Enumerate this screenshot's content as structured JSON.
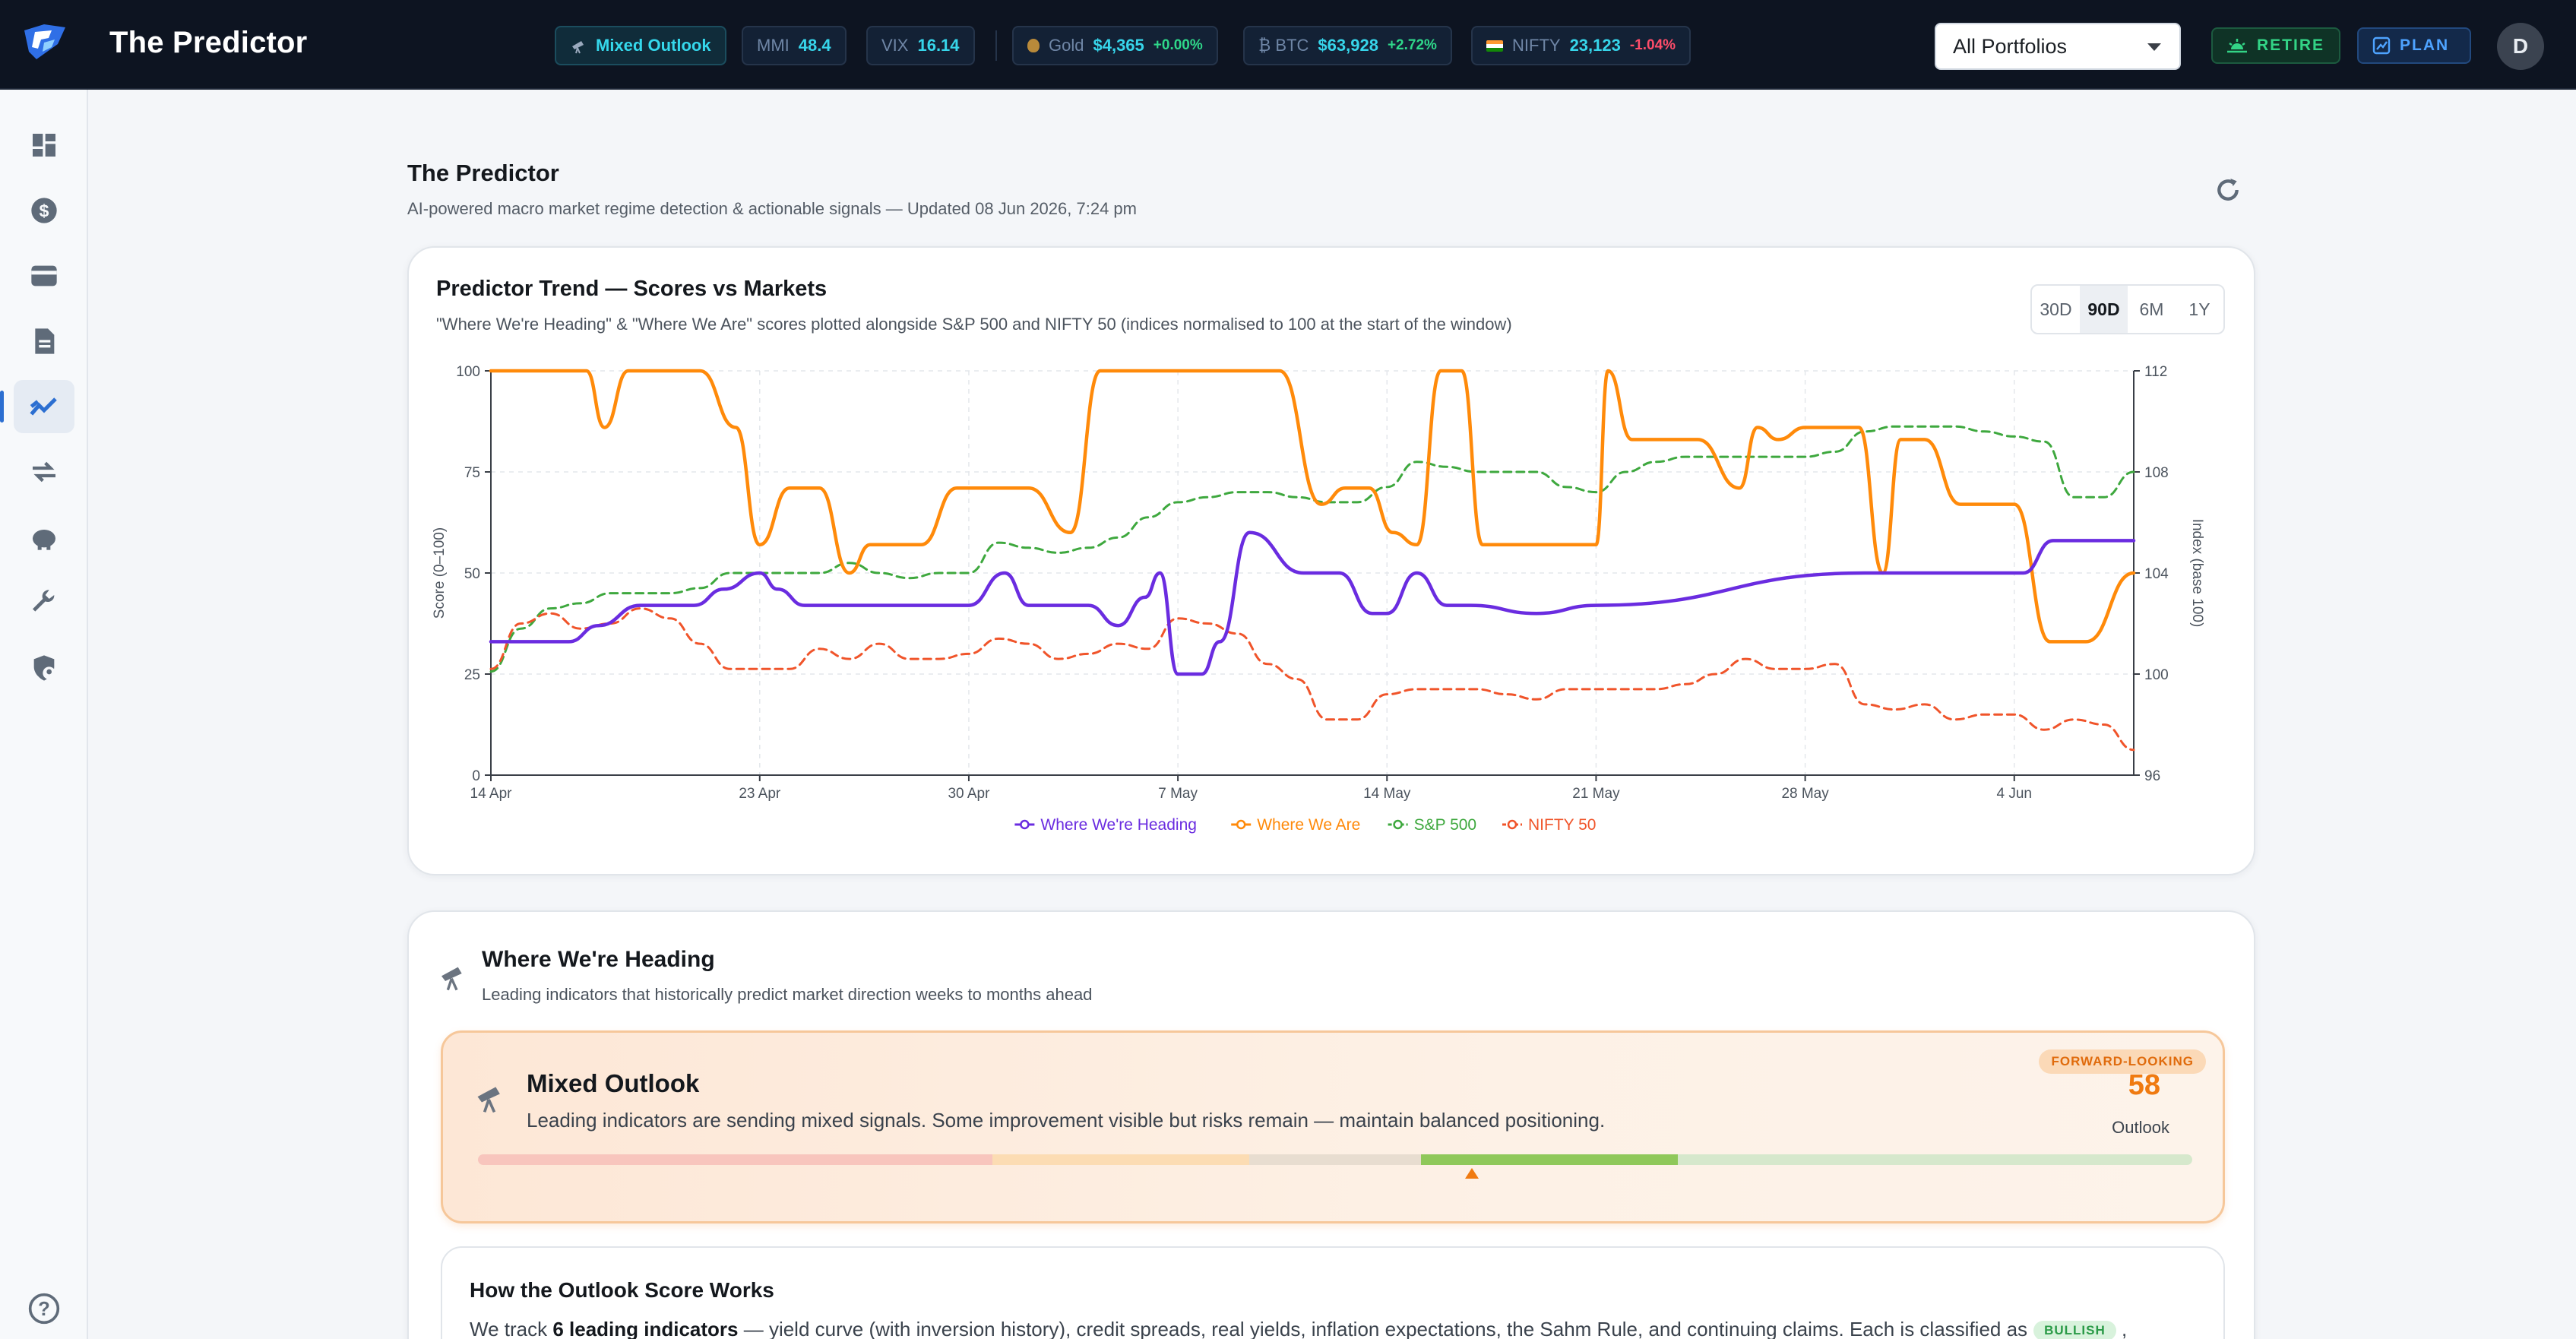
{
  "app": {
    "title": "The Predictor",
    "logo": "predictor-logo"
  },
  "topbar": {
    "outlook_chip": {
      "icon": "telescope-icon",
      "label": "Mixed Outlook"
    },
    "mmi": {
      "label": "MMI",
      "value": "48.4"
    },
    "vix": {
      "label": "VIX",
      "value": "16.14"
    },
    "gold": {
      "icon": "money-bag-icon",
      "label": "Gold",
      "value": "$4,365",
      "change": "+0.00%"
    },
    "btc": {
      "icon": "bitcoin-icon",
      "label": "₿ BTC",
      "value": "$63,928",
      "change": "+2.72%"
    },
    "nifty": {
      "icon": "india-flag-icon",
      "label": "NIFTY",
      "value": "23,123",
      "change": "-1.04%"
    },
    "portfolio_select": {
      "value": "All Portfolios"
    },
    "retire_button": {
      "label": "RETIRE",
      "icon": "sunrise-icon"
    },
    "plan_button": {
      "label": "PLAN",
      "icon": "chart-up-icon"
    },
    "avatar": {
      "initial": "D"
    }
  },
  "sidebar": {
    "items": [
      {
        "name": "dashboard",
        "icon": "dashboard-icon"
      },
      {
        "name": "money",
        "icon": "dollar-circle-icon"
      },
      {
        "name": "wallet",
        "icon": "wallet-icon"
      },
      {
        "name": "reports",
        "icon": "document-icon"
      },
      {
        "name": "predictor",
        "icon": "trending-icon",
        "active": true
      },
      {
        "name": "compare",
        "icon": "swap-icon"
      },
      {
        "name": "savings",
        "icon": "piggy-bank-icon"
      },
      {
        "name": "tools",
        "icon": "wrench-icon"
      },
      {
        "name": "security",
        "icon": "shield-user-icon"
      }
    ],
    "help_icon": "help-circle-icon"
  },
  "page": {
    "title": "The Predictor",
    "subtitle": "AI-powered macro market regime detection & actionable signals — Updated 08 Jun 2026, 7:24 pm",
    "refresh_icon": "refresh-icon"
  },
  "trend_card": {
    "title": "Predictor Trend — Scores vs Markets",
    "subtitle": "\"Where We're Heading\" & \"Where We Are\" scores plotted alongside S&P 500 and NIFTY 50 (indices normalised to 100 at the start of the window)",
    "ranges": [
      "30D",
      "90D",
      "6M",
      "1Y"
    ],
    "active_range": "90D"
  },
  "chart_data": {
    "type": "line",
    "title": "Predictor Trend — Scores vs Markets",
    "ylabel": "Score (0–100)",
    "y2label": "Index (base 100)",
    "ylim": [
      0,
      100
    ],
    "y2lim": [
      96,
      112
    ],
    "yticks": [
      0,
      25,
      50,
      75,
      100
    ],
    "y2ticks": [
      96,
      100,
      104,
      108,
      112
    ],
    "x_range_days": [
      0,
      55
    ],
    "xticks": [
      {
        "day": 0,
        "label": "14 Apr"
      },
      {
        "day": 9,
        "label": "23 Apr"
      },
      {
        "day": 16,
        "label": "30 Apr"
      },
      {
        "day": 23,
        "label": "7 May"
      },
      {
        "day": 30,
        "label": "14 May"
      },
      {
        "day": 37,
        "label": "21 May"
      },
      {
        "day": 44,
        "label": "28 May"
      },
      {
        "day": 51,
        "label": "4 Jun"
      }
    ],
    "grid": true,
    "legend_position": "bottom",
    "series": [
      {
        "name": "Where We're Heading",
        "axis": "left",
        "color": "#6a2ce0",
        "style": "solid",
        "x": [
          0,
          2,
          2.6,
          3.6,
          5,
          6,
          6.8,
          7.8,
          9,
          9.6,
          10.5,
          12,
          14,
          16,
          17.2,
          18,
          20,
          21,
          21.9,
          22.4,
          23,
          23.8,
          24.4,
          25.4,
          27.2,
          28.4,
          29.5,
          30,
          31,
          32,
          32.8,
          35,
          37,
          46,
          47,
          49,
          50.2,
          51.3,
          52.3,
          55
        ],
        "y": [
          33,
          33,
          33,
          37,
          42,
          42,
          42,
          46,
          50,
          46,
          42,
          42,
          42,
          42,
          50,
          42,
          42,
          37,
          44,
          50,
          25,
          25,
          33,
          60,
          50,
          50,
          40,
          40,
          50,
          42,
          42,
          40,
          42,
          50,
          50,
          50,
          50,
          50,
          58,
          58
        ]
      },
      {
        "name": "Where We Are",
        "axis": "left",
        "color": "#ff8a0a",
        "style": "solid",
        "x": [
          0,
          2.4,
          3.2,
          3.8,
          4.6,
          5.4,
          7,
          8.2,
          9,
          10,
          11,
          12,
          12.7,
          13.4,
          14.4,
          15.6,
          16.4,
          17.2,
          18,
          19.4,
          20.4,
          21.6,
          22.8,
          24,
          25.4,
          26.4,
          27.8,
          28.6,
          29.4,
          30.2,
          31,
          31.8,
          32.5,
          33.2,
          33.8,
          35,
          37,
          37.4,
          38.2,
          39.4,
          40.4,
          41.8,
          42.4,
          43.1,
          44,
          45,
          45.8,
          46.6,
          47.2,
          48,
          49.2,
          50.4,
          51,
          52.2,
          53.4,
          55
        ],
        "y": [
          100,
          100,
          100,
          86,
          100,
          100,
          100,
          86,
          57,
          71,
          71,
          50,
          57,
          57,
          57,
          71,
          71,
          71,
          71,
          60,
          100,
          100,
          100,
          100,
          100,
          100,
          67,
          71,
          71,
          60,
          57,
          100,
          100,
          57,
          57,
          57,
          57,
          100,
          83,
          83,
          83,
          71,
          86,
          83,
          86,
          86,
          86,
          50,
          83,
          83,
          67,
          67,
          67,
          33,
          33,
          50
        ]
      },
      {
        "name": "S&P 500",
        "axis": "right",
        "color": "#3ea83e",
        "style": "dashed",
        "x": [
          0,
          1,
          2,
          3,
          4,
          5,
          6,
          7,
          8,
          9,
          10,
          11,
          12,
          13,
          14,
          15,
          16,
          17,
          18,
          19,
          20,
          21,
          22,
          23,
          24,
          25,
          26,
          27,
          28,
          29,
          30,
          31,
          32,
          33,
          34,
          35,
          36,
          37,
          38,
          39,
          40,
          41,
          42,
          43,
          44,
          45,
          46,
          47,
          48,
          49,
          50,
          51,
          52,
          53,
          54,
          55
        ],
        "y": [
          100.1,
          101.8,
          102.6,
          102.8,
          103.2,
          103.2,
          103.2,
          103.4,
          104.0,
          104.0,
          104.0,
          104.0,
          104.4,
          104.0,
          103.8,
          104.0,
          104.0,
          105.2,
          105.0,
          104.8,
          105.0,
          105.4,
          106.2,
          106.8,
          107.0,
          107.2,
          107.2,
          107.0,
          106.8,
          106.8,
          107.4,
          108.4,
          108.2,
          108.0,
          108.0,
          108.0,
          107.4,
          107.2,
          108.0,
          108.4,
          108.6,
          108.6,
          108.6,
          108.6,
          108.6,
          108.8,
          109.6,
          109.8,
          109.8,
          109.8,
          109.6,
          109.4,
          109.2,
          107.0,
          107.0,
          108.0
        ]
      },
      {
        "name": "NIFTY 50",
        "axis": "right",
        "color": "#f0542a",
        "style": "dashed",
        "x": [
          0,
          1,
          2,
          3,
          4,
          5,
          6,
          7,
          8,
          9,
          10,
          11,
          12,
          13,
          14,
          15,
          16,
          17,
          18,
          19,
          20,
          21,
          22,
          23,
          24,
          25,
          26,
          27,
          28,
          29,
          30,
          31,
          32,
          33,
          34,
          35,
          36,
          37,
          38,
          39,
          40,
          41,
          42,
          43,
          44,
          45,
          46,
          47,
          48,
          49,
          50,
          51,
          52,
          53,
          54,
          55
        ],
        "y": [
          100.2,
          102.0,
          102.4,
          101.8,
          102.0,
          102.6,
          102.2,
          101.2,
          100.2,
          100.2,
          100.2,
          101.0,
          100.6,
          101.2,
          100.6,
          100.6,
          100.8,
          101.4,
          101.2,
          100.6,
          100.8,
          101.2,
          101.0,
          102.2,
          102.0,
          101.6,
          100.4,
          99.8,
          98.2,
          98.2,
          99.2,
          99.4,
          99.4,
          99.4,
          99.2,
          99.0,
          99.4,
          99.4,
          99.4,
          99.4,
          99.6,
          100.0,
          100.6,
          100.2,
          100.2,
          100.4,
          98.8,
          98.6,
          98.8,
          98.2,
          98.4,
          98.4,
          97.8,
          98.2,
          98.0,
          97.0
        ]
      }
    ]
  },
  "heading_card": {
    "icon": "telescope-icon",
    "title": "Where We're Heading",
    "subtitle": "Leading indicators that historically predict market direction weeks to months ahead",
    "outlook": {
      "icon": "telescope-icon",
      "title": "Mixed Outlook",
      "description": "Leading indicators are sending mixed signals. Some improvement visible but risks remain — maintain balanced positioning.",
      "badge": "FORWARD-LOOKING",
      "score": "58",
      "score_label": "Outlook",
      "score_value": 58,
      "bar_segments": [
        {
          "from": 0,
          "to": 30,
          "color": "#f8c5bd"
        },
        {
          "from": 30,
          "to": 45,
          "color": "#fcdcb3"
        },
        {
          "from": 45,
          "to": 55,
          "color": "#e8ddd0"
        },
        {
          "from": 55,
          "to": 70,
          "color": "#8fc85a"
        },
        {
          "from": 70,
          "to": 100,
          "color": "#d6e8cc"
        }
      ]
    },
    "how_it_works": {
      "title": "How the Outlook Score Works",
      "text_before": "We track ",
      "text_bold": "6 leading indicators",
      "text_after": " — yield curve (with inversion history), credit spreads, real yields, inflation expectations, the Sahm Rule, and continuing claims. Each is classified as",
      "badge": "BULLISH",
      "text_tail": " ,"
    }
  }
}
